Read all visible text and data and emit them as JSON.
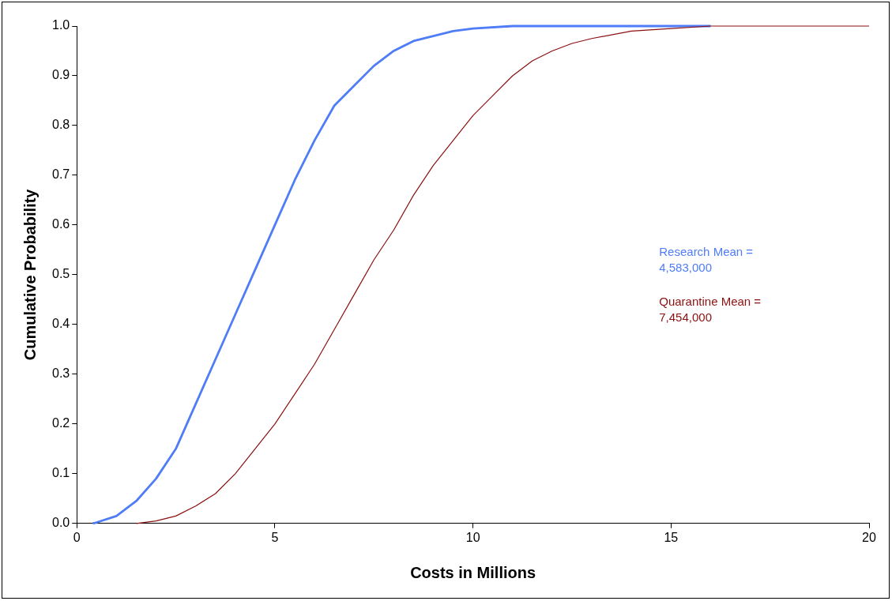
{
  "chart_data": {
    "type": "line",
    "xlabel": "Costs in Millions",
    "ylabel": "Cumulative Probability",
    "xlim": [
      0,
      20
    ],
    "xticks": [
      0,
      5,
      10,
      15,
      20
    ],
    "ylim": [
      0,
      1
    ],
    "yticks": [
      {
        "value": 0,
        "label": "0.0"
      },
      {
        "value": 0.1,
        "label": "0.1"
      },
      {
        "value": 0.2,
        "label": "0.2"
      },
      {
        "value": 0.3,
        "label": "0.3"
      },
      {
        "value": 0.4,
        "label": "0.4"
      },
      {
        "value": 0.5,
        "label": "0.5"
      },
      {
        "value": 0.6,
        "label": "0.6"
      },
      {
        "value": 0.7,
        "label": "0.7"
      },
      {
        "value": 0.8,
        "label": "0.8"
      },
      {
        "value": 0.9,
        "label": "0.9"
      },
      {
        "value": 1,
        "label": "1.0"
      }
    ],
    "grid": false,
    "legend": false,
    "marker": "none",
    "line_style": "solid",
    "annotations": [
      "Research Mean =\n4,583,000",
      "Quarantine Mean =\n7,454,000"
    ],
    "series": [
      {
        "color": "#4f7cf7",
        "x": [
          0.4,
          0.5,
          1.0,
          1.5,
          2.0,
          2.5,
          3.0,
          3.5,
          4.0,
          4.5,
          5.0,
          5.5,
          6.0,
          6.5,
          7.0,
          7.5,
          8.0,
          8.5,
          9.0,
          9.5,
          10.0,
          11.0,
          16.0
        ],
        "values": [
          0,
          0.002,
          0.015,
          0.045,
          0.09,
          0.15,
          0.24,
          0.33,
          0.42,
          0.51,
          0.6,
          0.69,
          0.77,
          0.84,
          0.88,
          0.92,
          0.95,
          0.97,
          0.98,
          0.99,
          0.995,
          1.0,
          1.0
        ]
      },
      {
        "color": "#8b1010",
        "x": [
          1.5,
          2.0,
          2.5,
          3.0,
          3.5,
          4.0,
          4.5,
          5.0,
          5.5,
          6.0,
          6.5,
          7.0,
          7.5,
          8.0,
          8.5,
          9.0,
          9.5,
          10.0,
          10.5,
          11.0,
          11.5,
          12.0,
          12.5,
          13.0,
          14.0,
          15.0,
          16.0,
          20.0
        ],
        "values": [
          0,
          0.005,
          0.015,
          0.035,
          0.06,
          0.1,
          0.15,
          0.2,
          0.26,
          0.32,
          0.39,
          0.46,
          0.53,
          0.59,
          0.66,
          0.72,
          0.77,
          0.82,
          0.86,
          0.9,
          0.93,
          0.95,
          0.965,
          0.975,
          0.99,
          0.995,
          1.0,
          1.0
        ]
      }
    ]
  }
}
